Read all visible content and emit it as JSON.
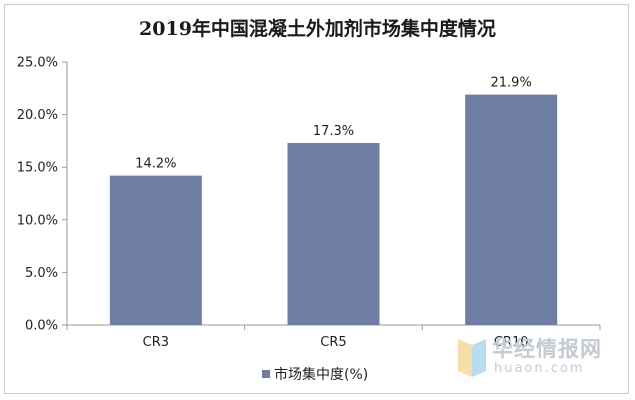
{
  "chart_data": {
    "type": "bar",
    "title": "2019年中国混凝土外加剂市场集中度情况",
    "categories": [
      "CR3",
      "CR5",
      "CR10"
    ],
    "series": [
      {
        "name": "市场集中度(%)",
        "values": [
          14.2,
          17.3,
          21.9
        ],
        "data_labels": [
          "14.2%",
          "17.3%",
          "21.9%"
        ]
      }
    ],
    "ylim": [
      0,
      25
    ],
    "yticks": [
      0,
      5,
      10,
      15,
      20,
      25
    ],
    "ytick_labels": [
      "0.0%",
      "5.0%",
      "10.0%",
      "15.0%",
      "20.0%",
      "25.0%"
    ],
    "xlabel": "",
    "ylabel": "",
    "grid": false,
    "legend": "bottom",
    "colors": {
      "bar": "#6f7ea5",
      "axis": "#9a9a9a"
    }
  },
  "watermark": {
    "name_cn": "华经情报网",
    "name_en": "huaon.com"
  }
}
